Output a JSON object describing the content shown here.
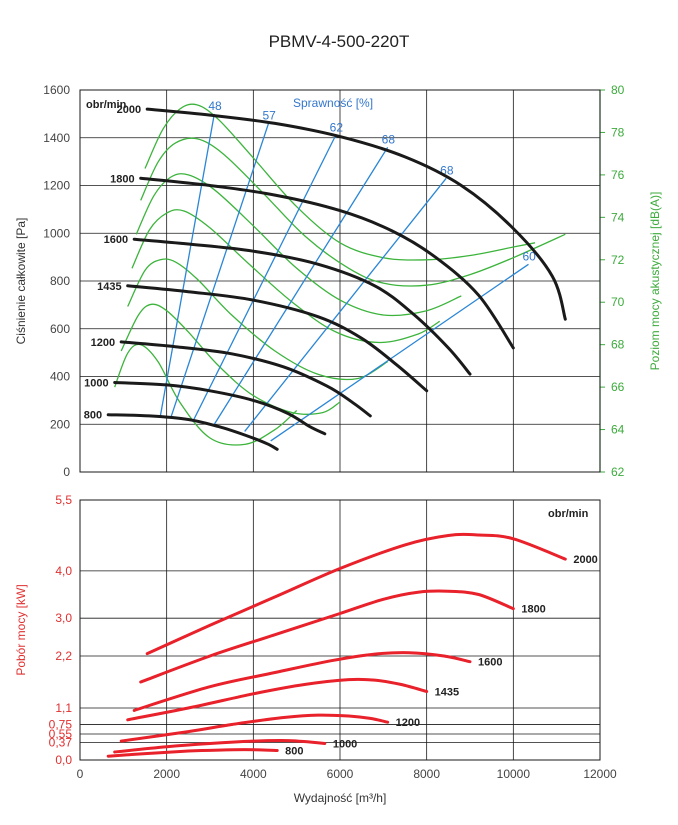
{
  "title": "PBMV-4-500-220T",
  "colors": {
    "pressure": "#1a1a1a",
    "efficiency": "#2a86d6",
    "noise": "#3cb43c",
    "power": "#e8212b",
    "right_axis": "#3cab3c",
    "power_axis": "#e03030"
  },
  "chart_data": [
    {
      "type": "line",
      "name": "pressure",
      "ylabel": "Ciśnienie całkowite [Pa]",
      "y2label": "Poziom mocy akustycznej [dB(A)]",
      "xlim": [
        0,
        12000
      ],
      "ylim": [
        0,
        1600
      ],
      "y2lim": [
        62,
        80
      ],
      "x_ticks": [
        0,
        2000,
        4000,
        6000,
        8000,
        10000,
        12000
      ],
      "y_ticks": [
        "0",
        "200",
        "400",
        "600",
        "800",
        "1000",
        "1200",
        "1400",
        "1600"
      ],
      "y2_ticks": [
        "62",
        "64",
        "66",
        "68",
        "70",
        "72",
        "74",
        "76",
        "78",
        "80"
      ],
      "speed_header": "obr/min",
      "efficiency_header": "Sprawność [%]",
      "pressure_curves": [
        {
          "speed": "2000",
          "points": [
            [
              1550,
              1520
            ],
            [
              3000,
              1495
            ],
            [
              4500,
              1460
            ],
            [
              6000,
              1405
            ],
            [
              7500,
              1320
            ],
            [
              8800,
              1200
            ],
            [
              10000,
              1020
            ],
            [
              10900,
              820
            ],
            [
              11200,
              640
            ]
          ]
        },
        {
          "speed": "1800",
          "points": [
            [
              1400,
              1230
            ],
            [
              3000,
              1200
            ],
            [
              4500,
              1160
            ],
            [
              6000,
              1095
            ],
            [
              7200,
              1010
            ],
            [
              8200,
              900
            ],
            [
              9200,
              740
            ],
            [
              10000,
              520
            ]
          ]
        },
        {
          "speed": "1600",
          "points": [
            [
              1250,
              975
            ],
            [
              2500,
              955
            ],
            [
              4000,
              925
            ],
            [
              5500,
              870
            ],
            [
              6800,
              780
            ],
            [
              7700,
              660
            ],
            [
              8500,
              520
            ],
            [
              9000,
              410
            ]
          ]
        },
        {
          "speed": "1435",
          "points": [
            [
              1100,
              780
            ],
            [
              2500,
              755
            ],
            [
              4000,
              720
            ],
            [
              5500,
              650
            ],
            [
              6500,
              560
            ],
            [
              7300,
              450
            ],
            [
              8000,
              340
            ]
          ]
        },
        {
          "speed": "1200",
          "points": [
            [
              950,
              545
            ],
            [
              2200,
              525
            ],
            [
              3500,
              495
            ],
            [
              4700,
              440
            ],
            [
              5700,
              360
            ],
            [
              6300,
              290
            ],
            [
              6700,
              235
            ]
          ]
        },
        {
          "speed": "1000",
          "points": [
            [
              800,
              375
            ],
            [
              2000,
              365
            ],
            [
              3000,
              340
            ],
            [
              4000,
              300
            ],
            [
              4800,
              245
            ],
            [
              5300,
              190
            ],
            [
              5650,
              160
            ]
          ]
        },
        {
          "speed": "800",
          "points": [
            [
              650,
              240
            ],
            [
              1600,
              235
            ],
            [
              2500,
              220
            ],
            [
              3200,
              190
            ],
            [
              3800,
              155
            ],
            [
              4300,
              120
            ],
            [
              4550,
              95
            ]
          ]
        }
      ],
      "efficiency_lines": [
        {
          "label": "48",
          "points": [
            [
              1850,
              230
            ],
            [
              3100,
              1500
            ]
          ]
        },
        {
          "label": "57",
          "points": [
            [
              2100,
              230
            ],
            [
              4350,
              1460
            ]
          ]
        },
        {
          "label": "62",
          "points": [
            [
              2600,
              210
            ],
            [
              5900,
              1410
            ]
          ]
        },
        {
          "label": "68",
          "points": [
            [
              3100,
              200
            ],
            [
              7100,
              1360
            ]
          ]
        },
        {
          "label": "68",
          "points": [
            [
              3800,
              170
            ],
            [
              8450,
              1230
            ]
          ]
        },
        {
          "label": "60",
          "points": [
            [
              4400,
              130
            ],
            [
              10350,
              870
            ]
          ]
        }
      ],
      "noise_curves": [
        {
          "speed": "2000",
          "points": [
            [
              1500,
              76.3
            ],
            [
              1900,
              78.1
            ],
            [
              2300,
              79.1
            ],
            [
              2700,
              79.3
            ],
            [
              3200,
              78.6
            ],
            [
              4000,
              76.8
            ],
            [
              5000,
              74.5
            ],
            [
              6000,
              72.8
            ],
            [
              7000,
              72.1
            ],
            [
              8000,
              72.0
            ],
            [
              9000,
              72.2
            ],
            [
              10000,
              72.6
            ],
            [
              10500,
              72.8
            ]
          ]
        },
        {
          "speed": "1800",
          "points": [
            [
              1400,
              74.8
            ],
            [
              1800,
              76.6
            ],
            [
              2200,
              77.5
            ],
            [
              2700,
              77.7
            ],
            [
              3300,
              77.0
            ],
            [
              4200,
              75.2
            ],
            [
              5200,
              73.1
            ],
            [
              6200,
              71.6
            ],
            [
              7000,
              70.9
            ],
            [
              8000,
              70.8
            ],
            [
              9000,
              71.3
            ],
            [
              10000,
              72.1
            ],
            [
              11200,
              73.2
            ]
          ]
        },
        {
          "speed": "1600",
          "points": [
            [
              1300,
              73.2
            ],
            [
              1700,
              75.0
            ],
            [
              2100,
              75.9
            ],
            [
              2500,
              76.0
            ],
            [
              3100,
              75.3
            ],
            [
              4000,
              73.6
            ],
            [
              5000,
              71.6
            ],
            [
              6000,
              70.1
            ],
            [
              7000,
              69.4
            ],
            [
              8000,
              69.6
            ],
            [
              8800,
              70.3
            ]
          ]
        },
        {
          "speed": "1435",
          "points": [
            [
              1200,
              71.6
            ],
            [
              1600,
              73.4
            ],
            [
              2000,
              74.2
            ],
            [
              2400,
              74.3
            ],
            [
              3000,
              73.5
            ],
            [
              3900,
              71.8
            ],
            [
              4900,
              70.0
            ],
            [
              5900,
              68.6
            ],
            [
              6900,
              68.1
            ],
            [
              7800,
              68.5
            ],
            [
              8300,
              69.1
            ]
          ]
        },
        {
          "speed": "1200",
          "points": [
            [
              1100,
              69.8
            ],
            [
              1500,
              71.5
            ],
            [
              1850,
              72.0
            ],
            [
              2200,
              71.9
            ],
            [
              2700,
              71.1
            ],
            [
              3500,
              69.4
            ],
            [
              4500,
              67.7
            ],
            [
              5500,
              66.6
            ],
            [
              6400,
              66.4
            ],
            [
              7100,
              67.2
            ]
          ]
        },
        {
          "speed": "1000",
          "points": [
            [
              950,
              67.7
            ],
            [
              1350,
              69.4
            ],
            [
              1650,
              69.9
            ],
            [
              2000,
              69.6
            ],
            [
              2500,
              68.6
            ],
            [
              3200,
              67.0
            ],
            [
              4000,
              65.6
            ],
            [
              4900,
              64.8
            ],
            [
              5600,
              64.8
            ],
            [
              6000,
              65.3
            ]
          ]
        },
        {
          "speed": "800",
          "points": [
            [
              800,
              66.0
            ],
            [
              1100,
              67.6
            ],
            [
              1400,
              68.0
            ],
            [
              1800,
              67.2
            ],
            [
              2300,
              65.3
            ],
            [
              3000,
              63.6
            ],
            [
              3800,
              63.3
            ],
            [
              4500,
              64.0
            ],
            [
              5000,
              64.9
            ]
          ]
        }
      ]
    },
    {
      "type": "line",
      "name": "power",
      "ylabel": "Pobór mocy [kW]",
      "xlabel": "Wydajność [m³/h]",
      "xlim": [
        0,
        12000
      ],
      "ylim": [
        0,
        5.5
      ],
      "x_ticks": [
        "0",
        "2000",
        "4000",
        "6000",
        "8000",
        "10000",
        "12000"
      ],
      "y_ticks": [
        "0,0",
        "0,37",
        "0,55",
        "0,75",
        "1,1",
        "2,2",
        "3,0",
        "4,0",
        "5,5"
      ],
      "speed_header": "obr/min",
      "power_curves": [
        {
          "speed": "2000",
          "points": [
            [
              1550,
              2.25
            ],
            [
              3000,
              2.85
            ],
            [
              4500,
              3.45
            ],
            [
              6000,
              4.05
            ],
            [
              7500,
              4.55
            ],
            [
              8500,
              4.75
            ],
            [
              9200,
              4.76
            ],
            [
              10000,
              4.68
            ],
            [
              11200,
              4.25
            ]
          ]
        },
        {
          "speed": "1800",
          "points": [
            [
              1400,
              1.65
            ],
            [
              3000,
              2.2
            ],
            [
              4500,
              2.65
            ],
            [
              6000,
              3.1
            ],
            [
              7000,
              3.4
            ],
            [
              7800,
              3.55
            ],
            [
              8500,
              3.57
            ],
            [
              9200,
              3.5
            ],
            [
              10000,
              3.2
            ]
          ]
        },
        {
          "speed": "1600",
          "points": [
            [
              1250,
              1.05
            ],
            [
              3000,
              1.55
            ],
            [
              4500,
              1.85
            ],
            [
              5800,
              2.1
            ],
            [
              6800,
              2.24
            ],
            [
              7600,
              2.27
            ],
            [
              8400,
              2.2
            ],
            [
              9000,
              2.08
            ]
          ]
        },
        {
          "speed": "1435",
          "points": [
            [
              1100,
              0.85
            ],
            [
              2500,
              1.1
            ],
            [
              4000,
              1.4
            ],
            [
              5200,
              1.6
            ],
            [
              6200,
              1.7
            ],
            [
              6800,
              1.69
            ],
            [
              7400,
              1.6
            ],
            [
              8000,
              1.45
            ]
          ]
        },
        {
          "speed": "1200",
          "points": [
            [
              950,
              0.4
            ],
            [
              2500,
              0.6
            ],
            [
              3500,
              0.75
            ],
            [
              4700,
              0.9
            ],
            [
              5500,
              0.95
            ],
            [
              6200,
              0.93
            ],
            [
              6700,
              0.88
            ],
            [
              7100,
              0.8
            ]
          ]
        },
        {
          "speed": "1000",
          "points": [
            [
              800,
              0.17
            ],
            [
              2000,
              0.28
            ],
            [
              3000,
              0.35
            ],
            [
              4000,
              0.4
            ],
            [
              4800,
              0.41
            ],
            [
              5300,
              0.38
            ],
            [
              5650,
              0.35
            ]
          ]
        },
        {
          "speed": "800",
          "points": [
            [
              650,
              0.08
            ],
            [
              1600,
              0.14
            ],
            [
              2500,
              0.19
            ],
            [
              3200,
              0.21
            ],
            [
              3800,
              0.22
            ],
            [
              4300,
              0.21
            ],
            [
              4550,
              0.2
            ]
          ]
        }
      ]
    }
  ]
}
